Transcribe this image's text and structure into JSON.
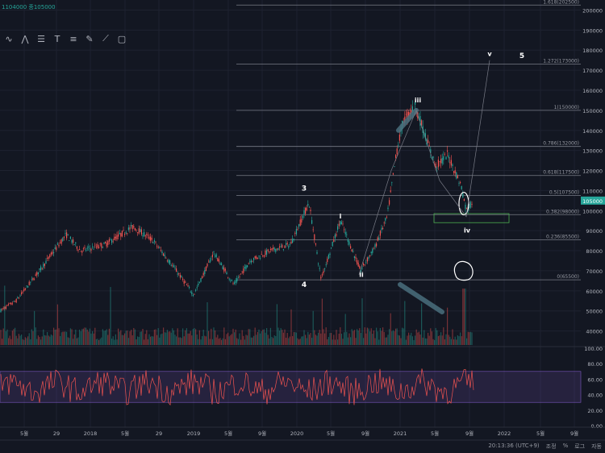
{
  "header": {
    "ohlc_text": "1104000 종105000"
  },
  "toolbar": {
    "icons": [
      "wave-icon",
      "zigzag-icon",
      "fib-retracement-icon",
      "text-icon",
      "fib-extension-icon",
      "brush-icon",
      "ruler-icon",
      "rectangle-icon"
    ]
  },
  "chart_data": {
    "type": "candlestick",
    "price_axis": {
      "ticks": [
        "200000",
        "190000",
        "180000",
        "170000",
        "160000",
        "150000",
        "140000",
        "130000",
        "120000",
        "110000",
        "100000",
        "90000",
        "80000",
        "70000",
        "60000",
        "50000",
        "40000"
      ],
      "ylim": [
        33000,
        200000
      ]
    },
    "current_price_label": "105000",
    "fib_levels": [
      {
        "label": "1.618(202500)",
        "value": 202500
      },
      {
        "label": "1.272(173000)",
        "value": 173000
      },
      {
        "label": "1(150000)",
        "value": 150000
      },
      {
        "label": "0.786(132000)",
        "value": 132000
      },
      {
        "label": "0.618(117500)",
        "value": 117500
      },
      {
        "label": "0.5(107500)",
        "value": 107500
      },
      {
        "label": "0.382(98000)",
        "value": 98000
      },
      {
        "label": "0.236(85500)",
        "value": 85500
      },
      {
        "label": "0(65500)",
        "value": 65500
      }
    ],
    "wave_labels": [
      {
        "label": "3",
        "value": 110000
      },
      {
        "label": "4",
        "value": 62000
      },
      {
        "label": "i",
        "value": 96000
      },
      {
        "label": "ii",
        "value": 67000
      },
      {
        "label": "iii",
        "value": 154000
      },
      {
        "label": "iv",
        "value": 89000
      },
      {
        "label": "v",
        "value": 177000
      },
      {
        "label": "5",
        "value": 176000
      }
    ],
    "rsi_axis": {
      "ticks": [
        "100.00",
        "80.00",
        "60.00",
        "40.00",
        "20.00",
        "0.00"
      ]
    },
    "time_axis": {
      "ticks": [
        "5월",
        "29",
        "2018",
        "5월",
        "29",
        "2019",
        "5월",
        "9월",
        "2020",
        "5월",
        "9월",
        "2021",
        "5월",
        "9월",
        "2022",
        "5월",
        "9월"
      ]
    }
  },
  "status_bar": {
    "time": "20:13:36 (UTC+9)",
    "adjust": "조정",
    "percent": "%",
    "log": "로그",
    "auto": "자동"
  }
}
